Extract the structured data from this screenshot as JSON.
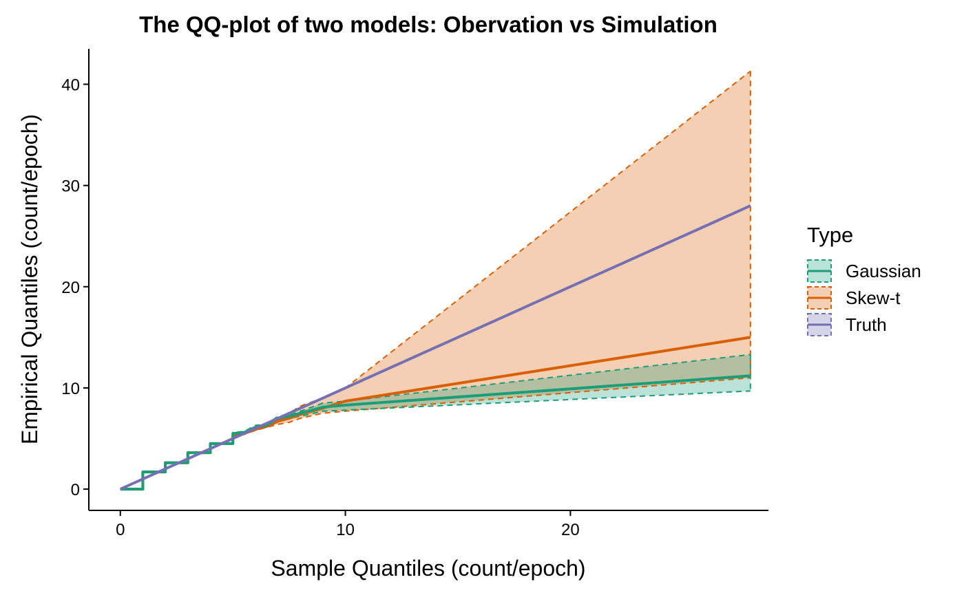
{
  "chart_data": {
    "type": "line",
    "title": "The QQ-plot of two models: Obervation vs Simulation",
    "xlabel": "Sample Quantiles (count/epoch)",
    "ylabel": "Empirical Quantiles (count/epoch)",
    "xlim": [
      -1.4,
      28.8
    ],
    "ylim": [
      -2.1,
      43.5
    ],
    "x_ticks": [
      0,
      10,
      20
    ],
    "y_ticks": [
      0,
      10,
      20,
      30,
      40
    ],
    "grid": false,
    "legend": {
      "title": "Type",
      "position": "right",
      "entries": [
        "Gaussian",
        "Skew-t",
        "Truth"
      ]
    },
    "colors": {
      "Gaussian": "#1b9e77",
      "Skew-t": "#d95f02",
      "Truth": "#7570b3"
    },
    "series": [
      {
        "name": "Truth",
        "x": [
          0,
          28
        ],
        "y": [
          0,
          28
        ],
        "upper": [
          0,
          28
        ],
        "lower": [
          0,
          28
        ]
      },
      {
        "name": "Skew-t",
        "x": [
          0,
          1,
          1,
          2,
          2,
          3,
          3,
          4,
          4,
          5,
          5,
          5.5,
          6,
          6.5,
          7,
          7.5,
          8,
          9,
          10,
          28
        ],
        "y": [
          0,
          0,
          1.7,
          1.7,
          2.6,
          2.6,
          3.6,
          3.6,
          4.5,
          4.5,
          5.3,
          5.5,
          5.9,
          6.2,
          6.7,
          7.0,
          7.4,
          8.0,
          8.7,
          15.0
        ],
        "upper": [
          0,
          0,
          1.7,
          1.7,
          2.6,
          2.6,
          3.6,
          3.6,
          4.5,
          4.5,
          5.4,
          5.6,
          6.0,
          6.4,
          7.0,
          7.5,
          8.2,
          9.0,
          10.0,
          41.3
        ],
        "lower": [
          0,
          0,
          1.7,
          1.7,
          2.6,
          2.6,
          3.6,
          3.6,
          4.5,
          4.5,
          5.2,
          5.4,
          5.8,
          6.1,
          6.4,
          6.6,
          7.0,
          7.5,
          7.7,
          11.0
        ]
      },
      {
        "name": "Gaussian",
        "x": [
          0,
          1,
          1,
          2,
          2,
          3,
          3,
          4,
          4,
          5,
          5,
          5.5,
          6,
          6.5,
          7,
          7.5,
          8,
          9,
          10,
          28
        ],
        "y": [
          0,
          0,
          1.7,
          1.7,
          2.6,
          2.6,
          3.6,
          3.6,
          4.5,
          4.5,
          5.5,
          5.6,
          6.1,
          6.3,
          7.0,
          7.2,
          7.5,
          8.1,
          8.3,
          11.2
        ],
        "upper": [
          0,
          0,
          1.7,
          1.7,
          2.6,
          2.6,
          3.6,
          3.6,
          4.5,
          4.5,
          5.6,
          5.7,
          6.3,
          6.4,
          7.2,
          7.3,
          7.7,
          8.5,
          8.7,
          13.3
        ],
        "lower": [
          0,
          0,
          1.7,
          1.7,
          2.6,
          2.6,
          3.6,
          3.6,
          4.5,
          4.5,
          5.4,
          5.5,
          5.9,
          6.1,
          6.8,
          7.0,
          7.2,
          7.7,
          7.8,
          9.7
        ]
      }
    ]
  }
}
